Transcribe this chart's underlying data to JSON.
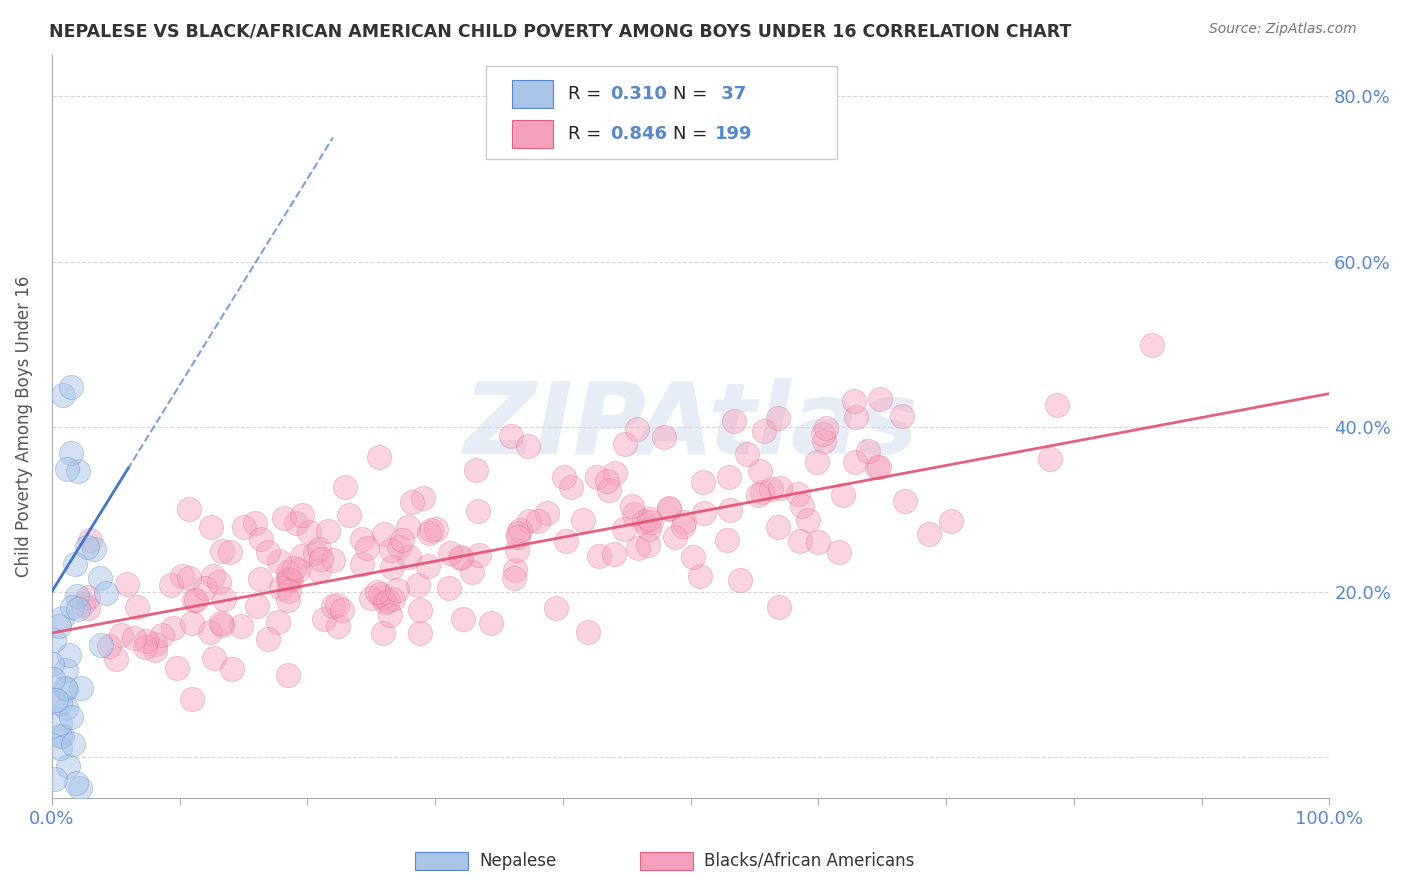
{
  "title": "NEPALESE VS BLACK/AFRICAN AMERICAN CHILD POVERTY AMONG BOYS UNDER 16 CORRELATION CHART",
  "source": "Source: ZipAtlas.com",
  "ylabel": "Child Poverty Among Boys Under 16",
  "xlabel": "",
  "watermark": "ZIPAtlas",
  "nepalese_R": 0.31,
  "nepalese_N": 37,
  "black_R": 0.846,
  "black_N": 199,
  "nepalese_color": "#aac4e8",
  "black_color": "#f4a0bc",
  "nepalese_edge_color": "#5588cc",
  "black_edge_color": "#e06080",
  "nepalese_line_color": "#4477cc",
  "black_line_color": "#e05070",
  "title_color": "#333333",
  "axis_label_color": "#5588cc",
  "legend_label1": "Nepalese",
  "legend_label2": "Blacks/African Americans",
  "background_color": "#ffffff",
  "grid_color": "#cccccc",
  "xlim": [
    0,
    1
  ],
  "ylim": [
    -0.05,
    0.85
  ],
  "seed": 42,
  "nepalese_line_slope": 2.5,
  "nepalese_line_intercept": 0.21,
  "black_line_slope": 0.29,
  "black_line_intercept": 0.15
}
